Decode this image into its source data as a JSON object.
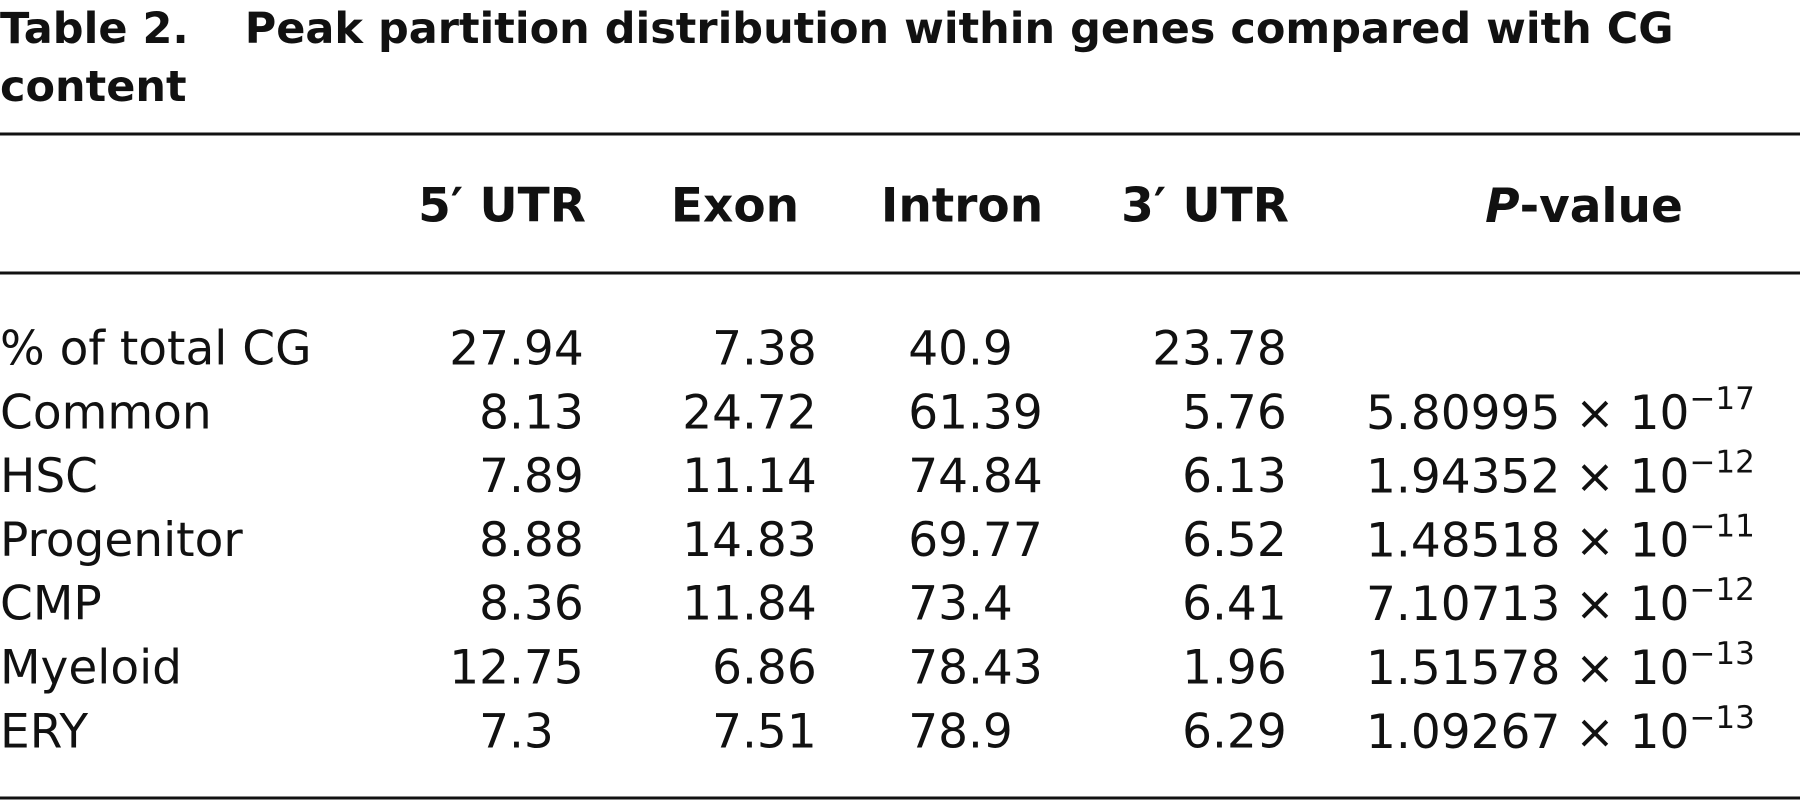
{
  "table": {
    "label": "Table 2.",
    "title": "Peak partition distribution within genes compared with CG content",
    "columns": [
      "5′ UTR",
      "Exon",
      "Intron",
      "3′ UTR"
    ],
    "pvalue_header": {
      "italic": "P",
      "rest": "-value"
    },
    "rows": [
      {
        "label": "% of total CG",
        "values": [
          27.94,
          7.38,
          40.9,
          23.78
        ]
      },
      {
        "label": "Common",
        "values": [
          8.13,
          24.72,
          61.39,
          5.76
        ],
        "p_value": {
          "base": "5.80995 × 10",
          "exponent": "−17"
        }
      },
      {
        "label": "HSC",
        "values": [
          7.89,
          11.14,
          74.84,
          6.13
        ],
        "p_value": {
          "base": "1.94352 × 10",
          "exponent": "−12"
        }
      },
      {
        "label": "Progenitor",
        "values": [
          8.88,
          14.83,
          69.77,
          6.52
        ],
        "p_value": {
          "base": "1.48518 × 10",
          "exponent": "−11"
        }
      },
      {
        "label": "CMP",
        "values": [
          8.36,
          11.84,
          73.4,
          6.41
        ],
        "p_value": {
          "base": "7.10713 × 10",
          "exponent": "−12"
        }
      },
      {
        "label": "Myeloid",
        "values": [
          12.75,
          6.86,
          78.43,
          1.96
        ],
        "p_value": {
          "base": "1.51578 × 10",
          "exponent": "−13"
        }
      },
      {
        "label": "ERY",
        "values": [
          7.3,
          7.51,
          78.9,
          6.29
        ],
        "p_value": {
          "base": "1.09267 × 10",
          "exponent": "−13"
        }
      }
    ]
  }
}
